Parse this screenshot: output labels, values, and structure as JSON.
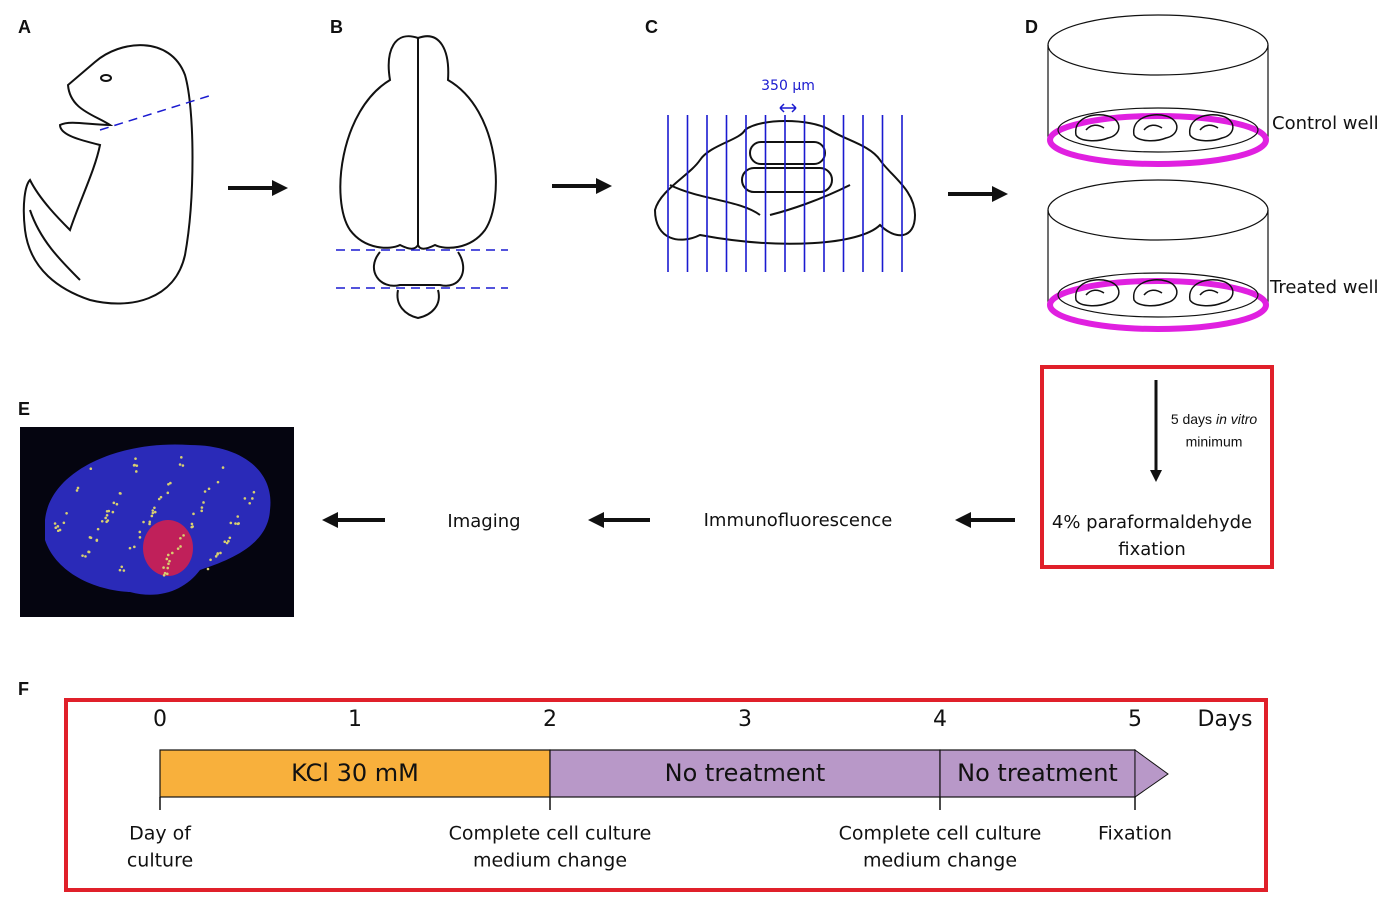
{
  "panels": {
    "a": "A",
    "b": "B",
    "c": "C",
    "d": "D",
    "e": "E",
    "f": "F"
  },
  "scale_label": "350 µm",
  "wells": [
    "Control well",
    "Treated well"
  ],
  "culture_note": {
    "days": "5 days ",
    "in_vitro": "in vitro",
    "minimum": "minimum"
  },
  "fixation": [
    "4% paraformaldehyde",
    "fixation"
  ],
  "steps": [
    "Immunofluorescence",
    "Imaging"
  ],
  "timeline": {
    "ticks": [
      0,
      1,
      2,
      3,
      4,
      5
    ],
    "unit": "Days",
    "segments": [
      "KCl 30 mM",
      "No treatment",
      "No treatment"
    ],
    "events": [
      [
        "Day of",
        "culture"
      ],
      [
        "Complete cell culture",
        "medium change"
      ],
      [
        "Complete cell culture",
        "medium change"
      ],
      [
        "Fixation"
      ]
    ]
  }
}
